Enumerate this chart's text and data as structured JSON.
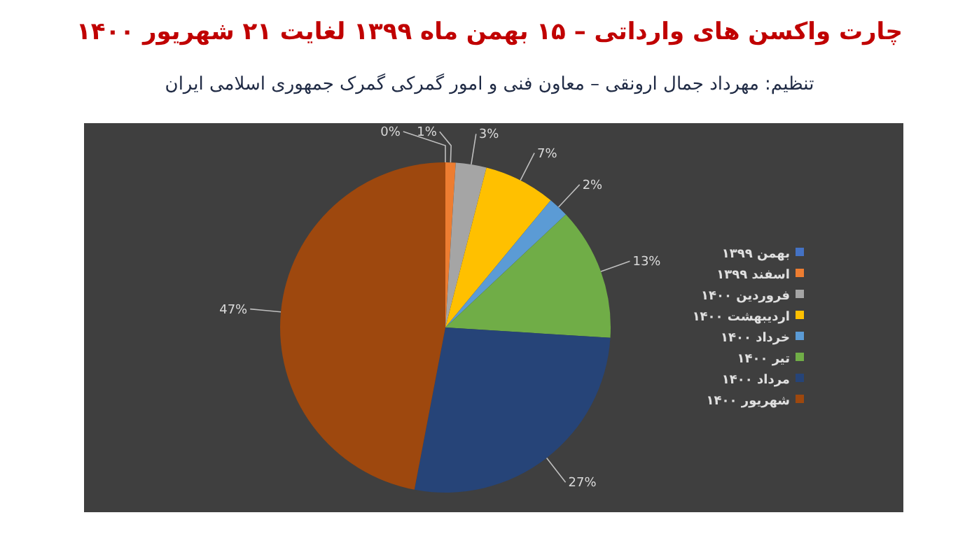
{
  "chart_data": {
    "type": "pie",
    "title": "چارت واکسن های وارداتی – ۱۵ بهمن ماه ۱۳۹۹ لغایت ۲۱ شهریور ۱۴۰۰",
    "subtitle": "تنظیم: مهرداد جمال ارونقی – معاون فنی و امور گمرکی گمرک جمهوری اسلامی ایران",
    "categories": [
      "بهمن ۱۳۹۹",
      "اسفند ۱۳۹۹",
      "فروردین ۱۴۰۰",
      "اردیبهشت ۱۴۰۰",
      "خرداد ۱۴۰۰",
      "تیر ۱۴۰۰",
      "مرداد ۱۴۰۰",
      "شهریور ۱۴۰۰"
    ],
    "values": [
      0,
      1,
      3,
      7,
      2,
      13,
      27,
      47
    ],
    "value_labels": [
      "0%",
      "1%",
      "3%",
      "7%",
      "2%",
      "13%",
      "27%",
      "47%"
    ],
    "colors": [
      "#4472c4",
      "#ed7d31",
      "#a5a5a5",
      "#ffc000",
      "#5b9bd5",
      "#70ad47",
      "#264478",
      "#9e480e"
    ],
    "legend": "right"
  }
}
